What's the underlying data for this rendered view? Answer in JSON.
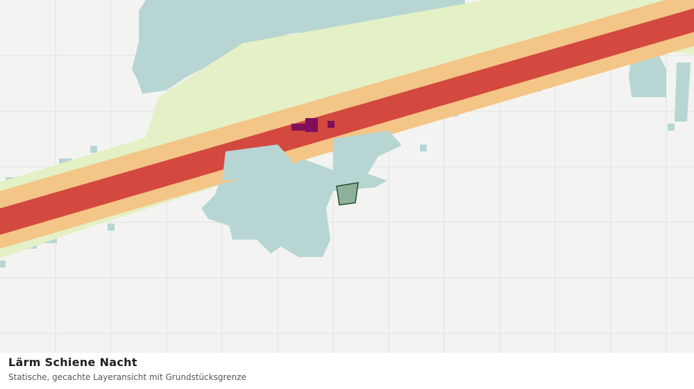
{
  "legend_panel": {
    "title": "Lärm Schiene Nacht",
    "subtitle": "Statische, gecachte Layeransicht mit Grundstücksgrenze"
  }
}
